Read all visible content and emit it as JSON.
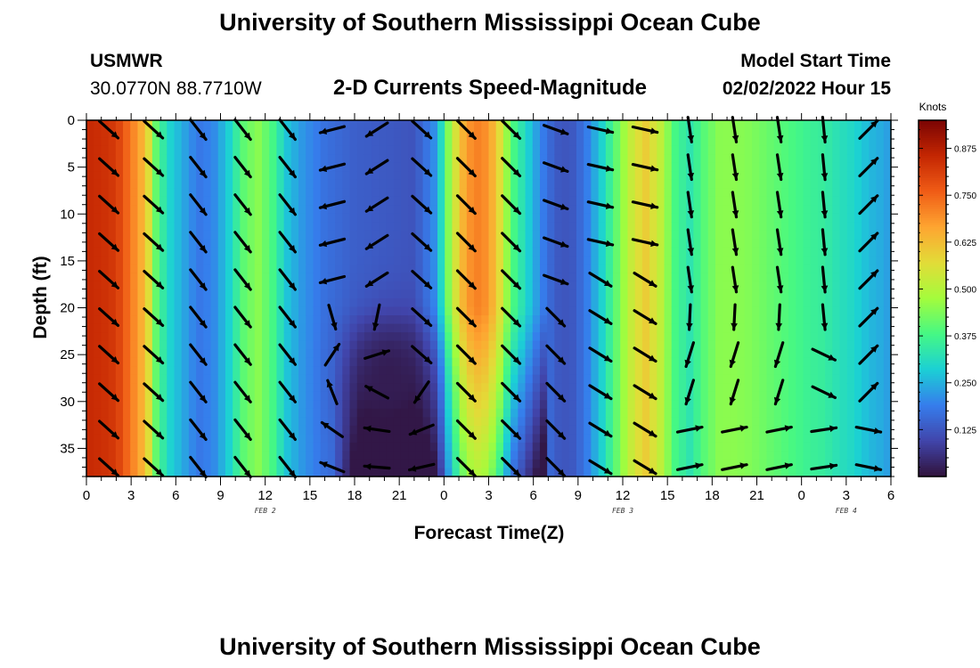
{
  "header": {
    "title": "University of Southern Mississippi Ocean Cube",
    "station": "USMWR",
    "location": "30.0770N  88.7710W",
    "subtitle": "2-D Currents Speed-Magnitude",
    "model_label": "Model Start Time",
    "model_time": "02/02/2022 Hour 15"
  },
  "footer": {
    "title": "University of Southern Mississippi Ocean Cube"
  },
  "chart_data": {
    "type": "heatmap",
    "title": "2-D Currents Speed-Magnitude",
    "xlabel": "Forecast Time(Z)",
    "ylabel": "Depth (ft)",
    "x_tick_labels": [
      "0",
      "3",
      "6",
      "9",
      "12",
      "15",
      "18",
      "21",
      "0",
      "3",
      "6",
      "9",
      "12",
      "15",
      "18",
      "21",
      "0",
      "3",
      "6"
    ],
    "x_range_hours": [
      0,
      54
    ],
    "y_ticks": [
      0,
      5,
      10,
      15,
      20,
      25,
      30,
      35
    ],
    "y_range": [
      0,
      38
    ],
    "y_inverted": true,
    "date_labels": [
      {
        "text": "FEB 2",
        "hour": 12
      },
      {
        "text": "FEB 3",
        "hour": 36
      },
      {
        "text": "FEB 4",
        "hour": 51
      }
    ],
    "colorbar": {
      "label": "Knots",
      "range": [
        0,
        0.95
      ],
      "ticks": [
        "0.125",
        "0.250",
        "0.375",
        "0.500",
        "0.625",
        "0.750",
        "0.875"
      ]
    },
    "speed_profile": {
      "description_hours": [
        0,
        1,
        2,
        3,
        4,
        4.7,
        5.5,
        6.5,
        7.5,
        8.5,
        9.5,
        10.5,
        11.5,
        12.5,
        13.5,
        14.5,
        16,
        18,
        20,
        22,
        23.5,
        24.5,
        25.5,
        26.5,
        27.5,
        28.5,
        29.5,
        30.5,
        31.5,
        32.5,
        33.5,
        34.5,
        35.5,
        36.5,
        37.5,
        38.5,
        39.5,
        40.5,
        41.5,
        42.5,
        43.5,
        44.5,
        45.5,
        46.5,
        47.5,
        48.5,
        49.5,
        50.5,
        51.5,
        52.5,
        53.5,
        54
      ],
      "surface_knots": [
        0.85,
        0.84,
        0.82,
        0.72,
        0.62,
        0.4,
        0.3,
        0.24,
        0.18,
        0.2,
        0.28,
        0.4,
        0.45,
        0.38,
        0.27,
        0.22,
        0.17,
        0.14,
        0.13,
        0.12,
        0.22,
        0.5,
        0.68,
        0.72,
        0.62,
        0.4,
        0.3,
        0.2,
        0.13,
        0.12,
        0.18,
        0.28,
        0.4,
        0.52,
        0.6,
        0.52,
        0.38,
        0.33,
        0.4,
        0.45,
        0.45,
        0.44,
        0.42,
        0.4,
        0.38,
        0.36,
        0.35,
        0.32,
        0.3,
        0.26,
        0.24,
        0.22
      ]
    },
    "low_speed_core": {
      "hour": 20.3,
      "depth_ft": 27.5,
      "speed_knots": 0.02
    }
  }
}
